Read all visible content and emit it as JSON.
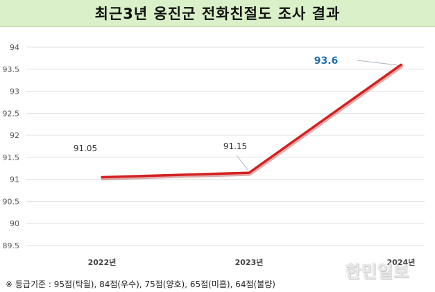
{
  "title": "최근3년 옹진군 전화친절도 조사 결과",
  "footnote": "※ 등급기준 : 95점(탁월), 84점(우수), 75점(양호), 65점(미흡), 64점(불량)",
  "watermark": "한민일보",
  "colors": {
    "line": "#d42020",
    "highlight_label": "#1f6fb0",
    "title_bg": "#d9f0c8"
  },
  "chart_data": {
    "type": "line",
    "title": "",
    "xlabel": "",
    "ylabel": "",
    "categories": [
      "2022년",
      "2023년",
      "2024년"
    ],
    "values": [
      91.05,
      91.15,
      93.6
    ],
    "data_labels": [
      "91.05",
      "91.15",
      "93.6"
    ],
    "ylim": [
      89.5,
      94
    ],
    "yticks": [
      "94",
      "93.5",
      "93",
      "92.5",
      "92",
      "91.5",
      "91",
      "90.5",
      "90",
      "89.5"
    ],
    "grid": "horizontal",
    "legend": "none"
  }
}
